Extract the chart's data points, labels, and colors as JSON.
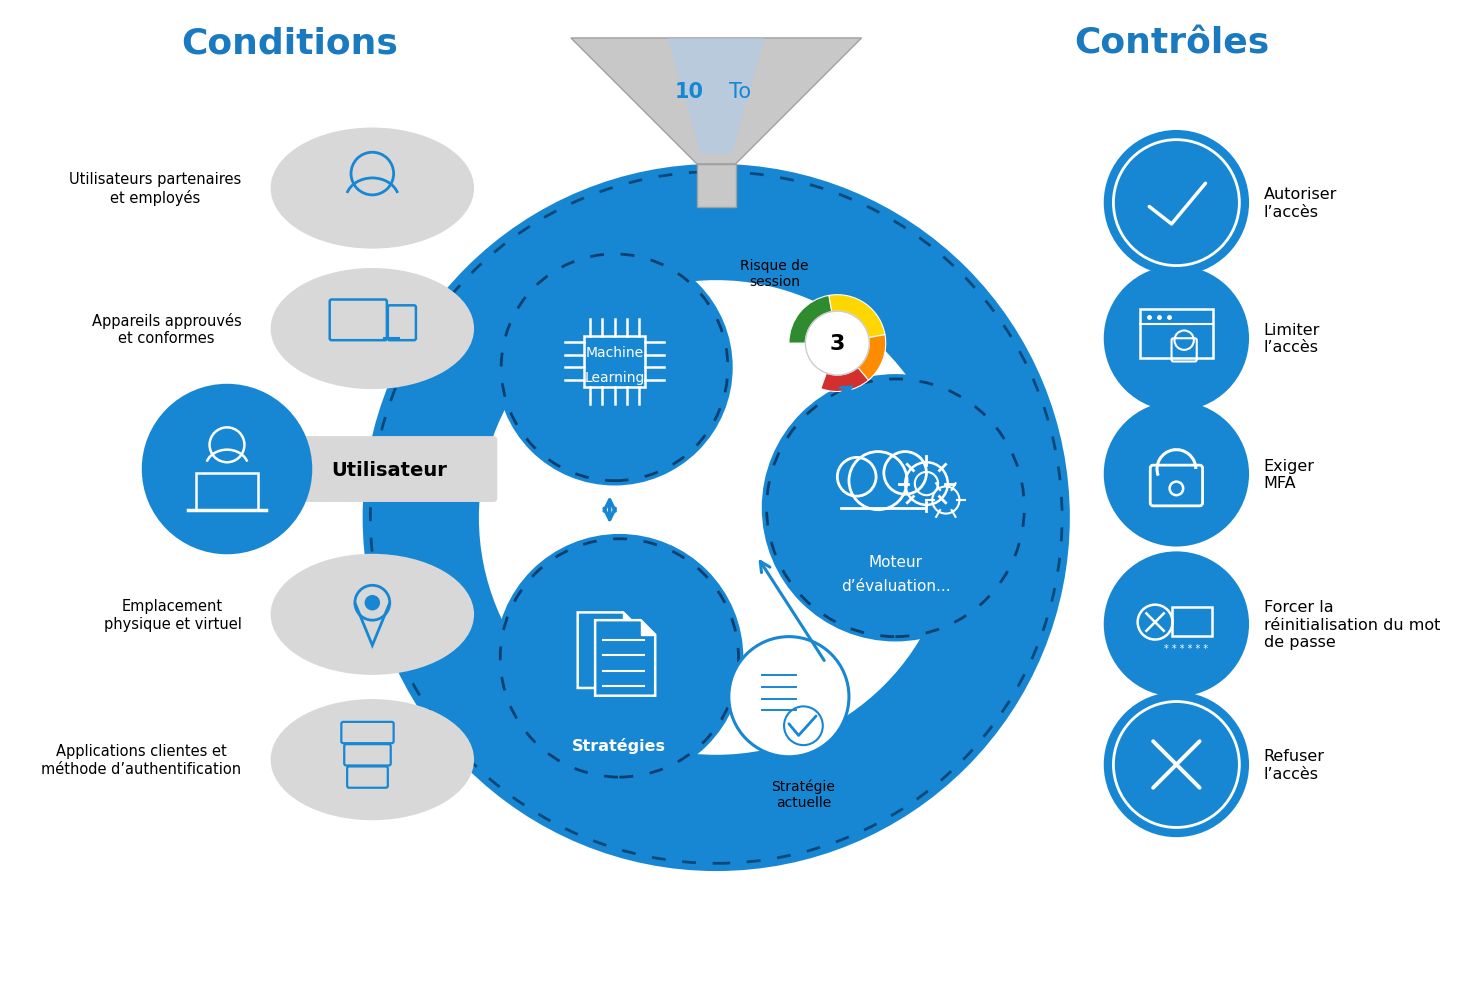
{
  "title_conditions": "Conditions",
  "title_controles": "Contrôles",
  "title_color": "#1a7abf",
  "bg_color": "#ffffff",
  "blue": "#1787d4",
  "blue_dark": "#0d5c9e",
  "gray_bg": "#d8d8d8",
  "gray_dark": "#b0b0b0",
  "conditions": [
    "Utilisateurs partenaires\net employés",
    "Appareils approuvés\net conformes",
    "Utilisateur",
    "Emplacement\nphysique et virtuel",
    "Applications clientes et\nméthode d’authentification"
  ],
  "controles": [
    "Autoriser\nl’accès",
    "Limiter\nl’accès",
    "Exiger\nMFA",
    "Forcer la\nréinitialisation du mot\nde passe",
    "Refuser\nl’accès"
  ],
  "risk_label": "Risque de\nsession",
  "risk_number": "3",
  "moteur_label1": "Moteur",
  "moteur_label2": "d’évaluation...",
  "strategie_label": "Stratégie\nactuelle",
  "funnel_label_bold": "10",
  "funnel_label_normal": "To",
  "ml_label1": "Machine",
  "ml_label2": "Learning",
  "strategies_label": "Stratégies"
}
